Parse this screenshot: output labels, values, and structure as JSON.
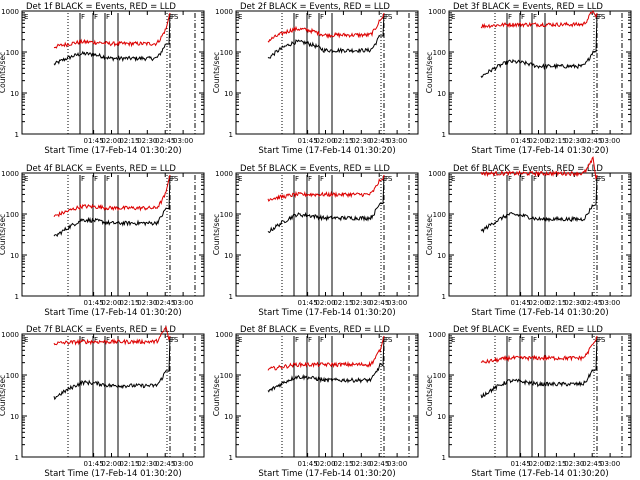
{
  "chart_data": [
    {
      "type": "line",
      "title": "Det 1f BLACK = Events, RED = LLD",
      "xlabel": "Start Time (17-Feb-14 01:30:20)",
      "ylabel": "Counts/sec",
      "xticks": [
        "01:45",
        "02:00",
        "02:15",
        "02:30",
        "02:45",
        "03:00"
      ],
      "yscale": "log",
      "ylim": [
        1,
        1000
      ],
      "yticks": [
        "1",
        "10",
        "100",
        "1000"
      ],
      "markers": [
        "E",
        "F",
        "F",
        "F",
        "E",
        "F",
        "S"
      ],
      "series": [
        {
          "color": "#000000",
          "level": 70,
          "start": -16,
          "rise": 1.4,
          "bump": 1.3
        },
        {
          "color": "#dd0000",
          "level": 160,
          "start": -16,
          "rise": 1.2,
          "bump": 1.1
        }
      ]
    },
    {
      "type": "line",
      "title": "Det 2f BLACK = Events, RED = LLD",
      "xlabel": "Start Time (17-Feb-14 01:30:20)",
      "ylabel": "Counts/sec",
      "xticks": [
        "01:45",
        "02:00",
        "02:15",
        "02:30",
        "02:45",
        "03:00"
      ],
      "yscale": "log",
      "ylim": [
        1,
        1000
      ],
      "yticks": [
        "1",
        "10",
        "100",
        "1000"
      ],
      "markers": [
        "E",
        "F",
        "F",
        "F",
        "E",
        "F",
        "S"
      ],
      "series": [
        {
          "color": "#000000",
          "level": 110,
          "start": 1,
          "rise": 1.6,
          "bump": 1.6
        },
        {
          "color": "#dd0000",
          "level": 260,
          "start": 1,
          "rise": 1.4,
          "bump": 1.4
        }
      ]
    },
    {
      "type": "line",
      "title": "Det 3f BLACK = Events, RED = LLD",
      "xlabel": "Start Time (17-Feb-14 01:30:20)",
      "ylabel": "Counts/sec",
      "xticks": [
        "01:45",
        "02:00",
        "02:15",
        "02:30",
        "02:45",
        "03:00"
      ],
      "yscale": "log",
      "ylim": [
        1,
        1000
      ],
      "yticks": [
        "1",
        "10",
        "100",
        "1000"
      ],
      "markers": [
        "E",
        "F",
        "F",
        "F",
        "E",
        "F",
        "S"
      ],
      "series": [
        {
          "color": "#000000",
          "level": 45,
          "start": -16,
          "rise": 1.8,
          "bump": 1.3
        },
        {
          "color": "#dd0000",
          "level": 470,
          "start": -16,
          "rise": 1.1,
          "bump": 1.0
        }
      ]
    },
    {
      "type": "line",
      "title": "Det 4f BLACK = Events, RED = LLD",
      "xlabel": "Start Time (17-Feb-14 01:30:20)",
      "ylabel": "Counts/sec",
      "xticks": [
        "01:45",
        "02:00",
        "02:15",
        "02:30",
        "02:45",
        "03:00"
      ],
      "yscale": "log",
      "ylim": [
        1,
        1000
      ],
      "yticks": [
        "1",
        "10",
        "100",
        "1000"
      ],
      "markers": [
        "E",
        "F",
        "F",
        "F",
        "E",
        "F",
        "S"
      ],
      "series": [
        {
          "color": "#000000",
          "level": 60,
          "start": -16,
          "rise": 2.2,
          "bump": 1.2
        },
        {
          "color": "#dd0000",
          "level": 140,
          "start": -16,
          "rise": 1.6,
          "bump": 1.1
        }
      ]
    },
    {
      "type": "line",
      "title": "Det 5f BLACK = Events, RED = LLD",
      "xlabel": "Start Time (17-Feb-14 01:30:20)",
      "ylabel": "Counts/sec",
      "xticks": [
        "01:45",
        "02:00",
        "02:15",
        "02:30",
        "02:45",
        "03:00"
      ],
      "yscale": "log",
      "ylim": [
        1,
        1000
      ],
      "yticks": [
        "1",
        "10",
        "100",
        "1000"
      ],
      "markers": [
        "E",
        "F",
        "F",
        "F",
        "E",
        "F",
        "S"
      ],
      "series": [
        {
          "color": "#000000",
          "level": 80,
          "start": 1,
          "rise": 2.2,
          "bump": 1.2
        },
        {
          "color": "#dd0000",
          "level": 300,
          "start": -16,
          "rise": 1.3,
          "bump": 1.0
        }
      ]
    },
    {
      "type": "line",
      "title": "Det 6f BLACK = Events, RED = LLD",
      "xlabel": "Start Time (17-Feb-14 01:30:20)",
      "ylabel": "Counts/sec",
      "xticks": [
        "01:45",
        "02:00",
        "02:15",
        "02:30",
        "02:45",
        "03:00"
      ],
      "yscale": "log",
      "ylim": [
        1,
        1000
      ],
      "yticks": [
        "1",
        "10",
        "100",
        "1000"
      ],
      "markers": [
        "E",
        "F",
        "F",
        "F",
        "E",
        "F",
        "S"
      ],
      "series": [
        {
          "color": "#000000",
          "level": 75,
          "start": -16,
          "rise": 2.0,
          "bump": 1.3
        },
        {
          "color": "#dd0000",
          "level": 980,
          "start": -16,
          "rise": 1.0,
          "bump": 1.0
        }
      ]
    },
    {
      "type": "line",
      "title": "Det 7f BLACK = Events, RED = LLD",
      "xlabel": "Start Time (17-Feb-14 01:30:20)",
      "ylabel": "Counts/sec",
      "xticks": [
        "01:45",
        "02:00",
        "02:15",
        "02:30",
        "02:45",
        "03:00"
      ],
      "yscale": "log",
      "ylim": [
        1,
        1000
      ],
      "yticks": [
        "1",
        "10",
        "100",
        "1000"
      ],
      "markers": [
        "E",
        "F",
        "F",
        "F",
        "E",
        "F",
        "S"
      ],
      "series": [
        {
          "color": "#000000",
          "level": 55,
          "start": -16,
          "rise": 2.0,
          "bump": 1.2
        },
        {
          "color": "#dd0000",
          "level": 650,
          "start": -16,
          "rise": 1.1,
          "bump": 1.0
        }
      ]
    },
    {
      "type": "line",
      "title": "Det 8f BLACK = Events, RED = LLD",
      "xlabel": "Start Time (17-Feb-14 01:30:20)",
      "ylabel": "Counts/sec",
      "xticks": [
        "01:45",
        "02:00",
        "02:15",
        "02:30",
        "02:45",
        "03:00"
      ],
      "yscale": "log",
      "ylim": [
        1,
        1000
      ],
      "yticks": [
        "1",
        "10",
        "100",
        "1000"
      ],
      "markers": [
        "E",
        "F",
        "F",
        "F",
        "E",
        "F",
        "S"
      ],
      "series": [
        {
          "color": "#000000",
          "level": 75,
          "start": 1,
          "rise": 1.9,
          "bump": 1.2
        },
        {
          "color": "#dd0000",
          "level": 180,
          "start": 1,
          "rise": 1.3,
          "bump": 1.0
        }
      ]
    },
    {
      "type": "line",
      "title": "Det 9f BLACK = Events, RED = LLD",
      "xlabel": "Start Time (17-Feb-14 01:30:20)",
      "ylabel": "Counts/sec",
      "xticks": [
        "01:45",
        "02:00",
        "02:15",
        "02:30",
        "02:45",
        "03:00"
      ],
      "yscale": "log",
      "ylim": [
        1,
        1000
      ],
      "yticks": [
        "1",
        "10",
        "100",
        "1000"
      ],
      "markers": [
        "E",
        "F",
        "F",
        "F",
        "E",
        "F",
        "S"
      ],
      "series": [
        {
          "color": "#000000",
          "level": 60,
          "start": -16,
          "rise": 2.0,
          "bump": 1.2
        },
        {
          "color": "#dd0000",
          "level": 260,
          "start": -16,
          "rise": 1.3,
          "bump": 1.0
        }
      ]
    }
  ]
}
